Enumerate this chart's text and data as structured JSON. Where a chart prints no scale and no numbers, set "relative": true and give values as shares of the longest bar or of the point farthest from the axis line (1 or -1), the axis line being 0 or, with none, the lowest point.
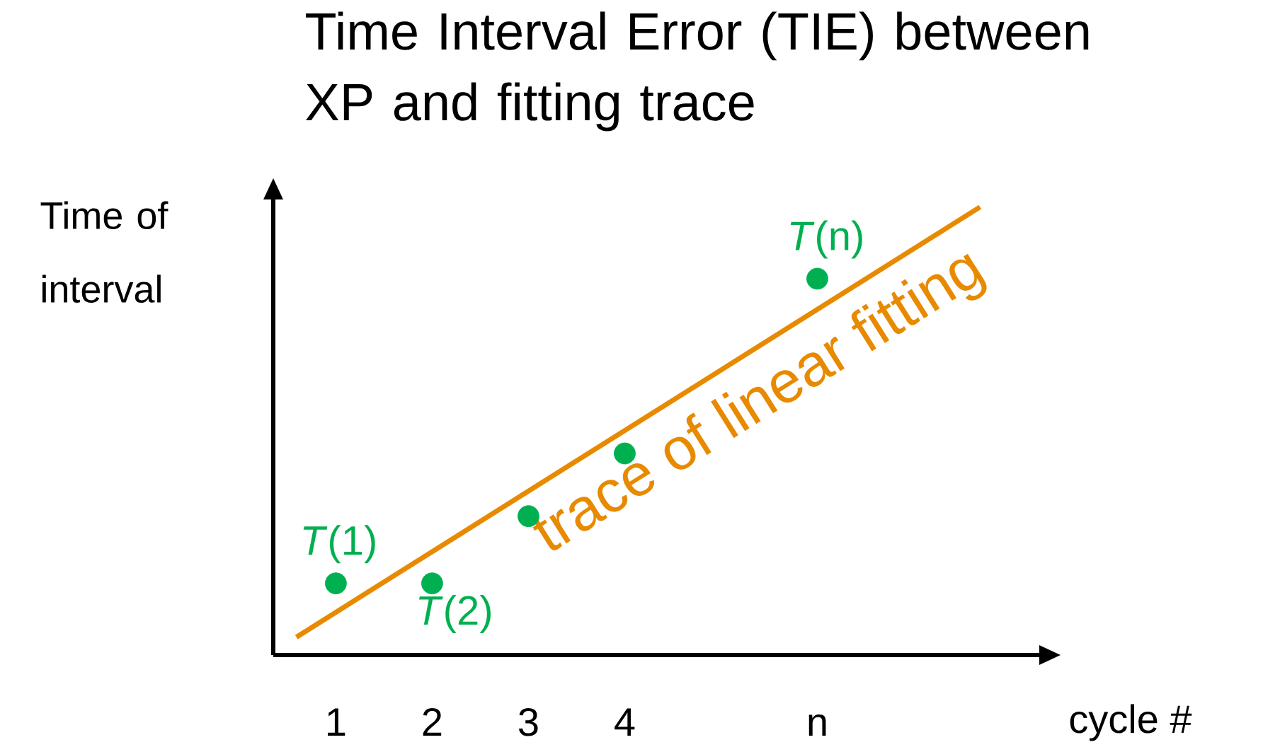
{
  "chart_data": {
    "type": "scatter",
    "title": "Time Interval Error (TIE) between XP and fitting trace",
    "xlabel": "cycle #",
    "ylabel": "Time of interval",
    "relative": true,
    "xlim": [
      0.35,
      8.32
    ],
    "xticks": [
      1,
      2,
      3,
      4,
      {
        "value": 6,
        "label": "n"
      }
    ],
    "series": [
      {
        "color": "#00b050",
        "x": [
          1,
          2,
          3,
          4,
          6
        ],
        "values": [
          0.16,
          0.16,
          0.31,
          0.45,
          0.84
        ]
      },
      {
        "type": "line",
        "name": "trace of linear fitting",
        "color": "#e88a00",
        "x": [
          0.59,
          7.69
        ],
        "values": [
          0.04,
          1.0
        ]
      }
    ],
    "annotations": [
      {
        "text": "*T*(1)",
        "x": 1,
        "y": 0.16
      },
      {
        "text": "*T*(2)",
        "x": 2,
        "y": 0.16
      },
      {
        "text": "*T*(n)",
        "x": 6,
        "y": 0.84
      }
    ],
    "legend": false,
    "grid": false
  }
}
